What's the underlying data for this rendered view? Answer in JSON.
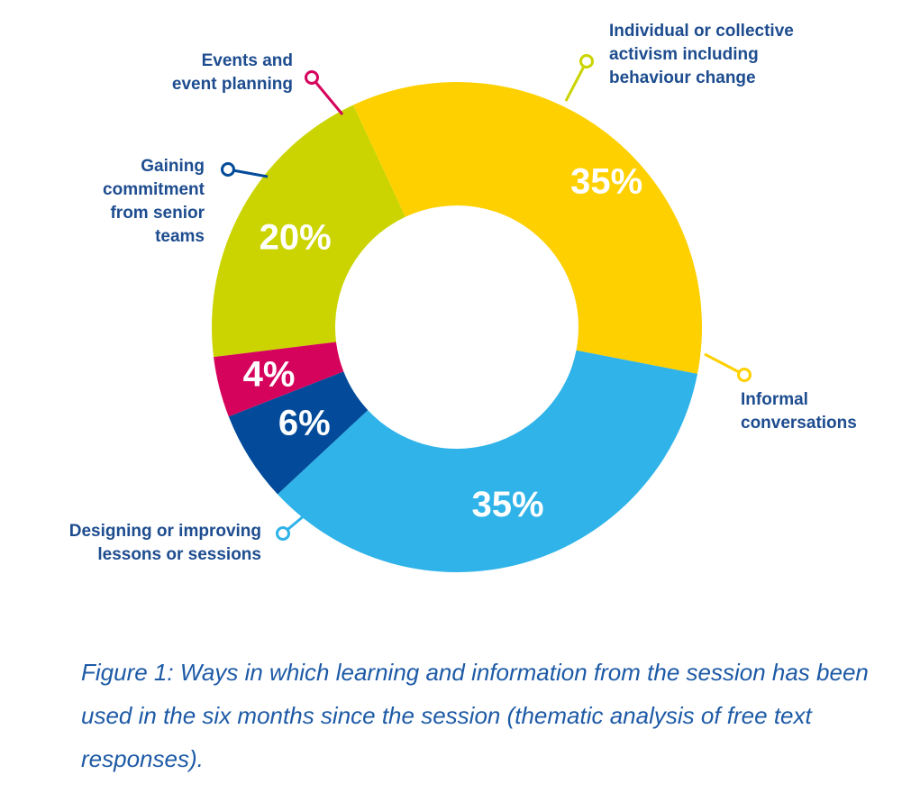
{
  "chart_data": {
    "type": "pie",
    "style": "donut",
    "slices": [
      {
        "label": "Individual or collective activism including behaviour change",
        "value": 20,
        "value_label": "20%",
        "color": "#cbd400"
      },
      {
        "label": "Informal conversations",
        "value": 35,
        "value_label": "35%",
        "color": "#fed000"
      },
      {
        "label": "Designing or improving lessons or sessions",
        "value": 35,
        "value_label": "35%",
        "color": "#2fb3e9"
      },
      {
        "label": "Gaining commitment from senior teams",
        "value": 6,
        "value_label": "6%",
        "color": "#034b9a"
      },
      {
        "label": "Events and event planning",
        "value": 4,
        "value_label": "4%",
        "color": "#d6035c"
      }
    ]
  },
  "callouts": {
    "activism": [
      "Individual or collective",
      "activism including",
      "behaviour change"
    ],
    "informal": [
      "Informal",
      "conversations"
    ],
    "designing": [
      "Designing or improving",
      "lessons or sessions"
    ],
    "gaining": [
      "Gaining",
      "commitment",
      "from senior",
      "teams"
    ],
    "events": [
      "Events and",
      "event planning"
    ]
  },
  "caption": "Figure 1: Ways in which learning and information from the session has been used in the six months since the session (thematic analysis of free text responses).",
  "colors": {
    "label_text": "#1d4c8f",
    "caption_text": "#1d5aa6"
  }
}
